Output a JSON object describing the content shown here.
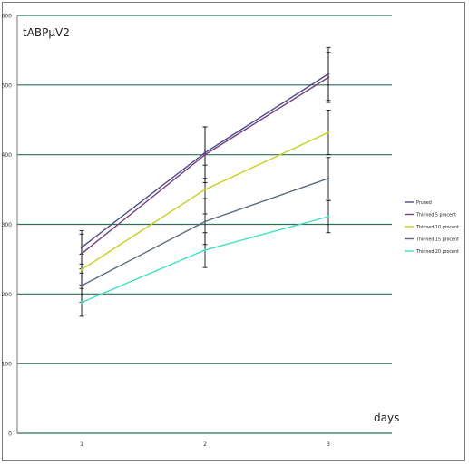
{
  "chart_data": {
    "type": "line",
    "title": "",
    "ylabel": "tABPµV2",
    "xlabel": "days",
    "categories": [
      "1",
      "2",
      "3"
    ],
    "ylim": [
      0,
      600
    ],
    "yticks": [
      0,
      100,
      200,
      300,
      400,
      500,
      600
    ],
    "grid": true,
    "legend_placement": "right",
    "series": [
      {
        "name": "Pruned",
        "color": "#4a4f8c",
        "values": [
          267,
          403,
          516
        ],
        "errors": [
          24,
          37,
          38
        ]
      },
      {
        "name": "Thinned 5 procent",
        "color": "#7b3f7e",
        "values": [
          258,
          400,
          511
        ],
        "errors": [
          28,
          40,
          36
        ]
      },
      {
        "name": "Thinned 10 procent",
        "color": "#c8cf20",
        "values": [
          235,
          350,
          432
        ],
        "errors": [
          22,
          35,
          32
        ]
      },
      {
        "name": "Thinned 15 procent",
        "color": "#5e6a80",
        "values": [
          212,
          304,
          366
        ],
        "errors": [
          24,
          33,
          30
        ]
      },
      {
        "name": "Thinned 20 procent",
        "color": "#3ee0c4",
        "values": [
          188,
          263,
          311
        ],
        "errors": [
          20,
          25,
          23
        ]
      }
    ]
  }
}
